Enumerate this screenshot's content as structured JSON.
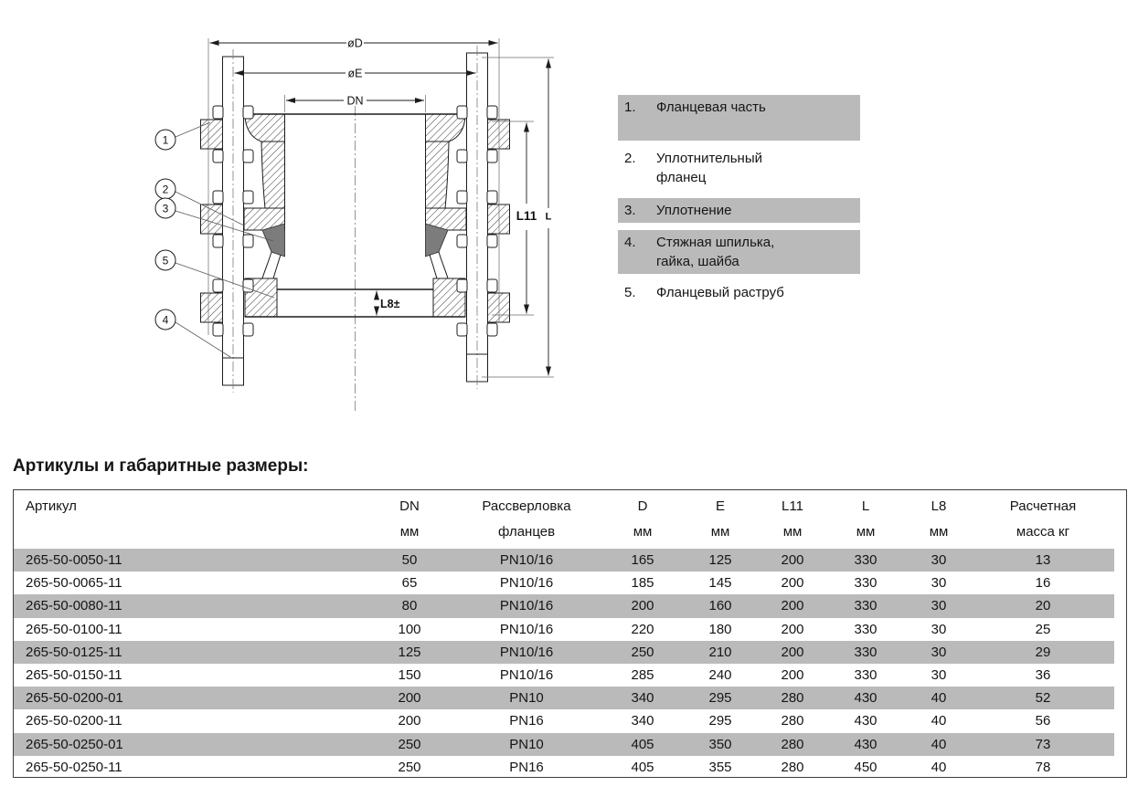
{
  "diagram": {
    "labels": {
      "od": "øD",
      "oe": "øE",
      "dn": "DN",
      "l11": "L11",
      "l": "L",
      "l8": "L8±"
    },
    "callouts": [
      "1",
      "2",
      "3",
      "4",
      "5"
    ]
  },
  "legend": {
    "items": [
      {
        "num": "1.",
        "text": "Фланцевая часть",
        "shaded": true
      },
      {
        "num": "2.",
        "text": "Уплотнительный\nфланец",
        "shaded": false
      },
      {
        "num": "3.",
        "text": "Уплотнение",
        "shaded": true
      },
      {
        "num": "4.",
        "text": "Стяжная шпилька,\nгайка, шайба",
        "shaded": true
      },
      {
        "num": "5.",
        "text": "Фланцевый раструб",
        "shaded": false
      }
    ]
  },
  "table": {
    "title": "Артикулы и габаритные размеры:",
    "columns": [
      {
        "line1": "Артикул",
        "line2": ""
      },
      {
        "line1": "DN",
        "line2": "мм"
      },
      {
        "line1": "Рассверловка",
        "line2": "фланцев"
      },
      {
        "line1": "D",
        "line2": "мм"
      },
      {
        "line1": "E",
        "line2": "мм"
      },
      {
        "line1": "L11",
        "line2": "мм"
      },
      {
        "line1": "L",
        "line2": "мм"
      },
      {
        "line1": "L8",
        "line2": "мм"
      },
      {
        "line1": "Расчетная",
        "line2": "масса кг"
      }
    ],
    "rows": [
      [
        "265-50-0050-11",
        "50",
        "PN10/16",
        "165",
        "125",
        "200",
        "330",
        "30",
        "13"
      ],
      [
        "265-50-0065-11",
        "65",
        "PN10/16",
        "185",
        "145",
        "200",
        "330",
        "30",
        "16"
      ],
      [
        "265-50-0080-11",
        "80",
        "PN10/16",
        "200",
        "160",
        "200",
        "330",
        "30",
        "20"
      ],
      [
        "265-50-0100-11",
        "100",
        "PN10/16",
        "220",
        "180",
        "200",
        "330",
        "30",
        "25"
      ],
      [
        "265-50-0125-11",
        "125",
        "PN10/16",
        "250",
        "210",
        "200",
        "330",
        "30",
        "29"
      ],
      [
        "265-50-0150-11",
        "150",
        "PN10/16",
        "285",
        "240",
        "200",
        "330",
        "30",
        "36"
      ],
      [
        "265-50-0200-01",
        "200",
        "PN10",
        "340",
        "295",
        "280",
        "430",
        "40",
        "52"
      ],
      [
        "265-50-0200-11",
        "200",
        "PN16",
        "340",
        "295",
        "280",
        "430",
        "40",
        "56"
      ],
      [
        "265-50-0250-01",
        "250",
        "PN10",
        "405",
        "350",
        "280",
        "430",
        "40",
        "73"
      ],
      [
        "265-50-0250-11",
        "250",
        "PN16",
        "405",
        "355",
        "280",
        "450",
        "40",
        "78"
      ]
    ]
  },
  "colors": {
    "shaded_row": "#bababa",
    "seal_fill": "#7c7c7c",
    "line": "#1c1c1c"
  }
}
